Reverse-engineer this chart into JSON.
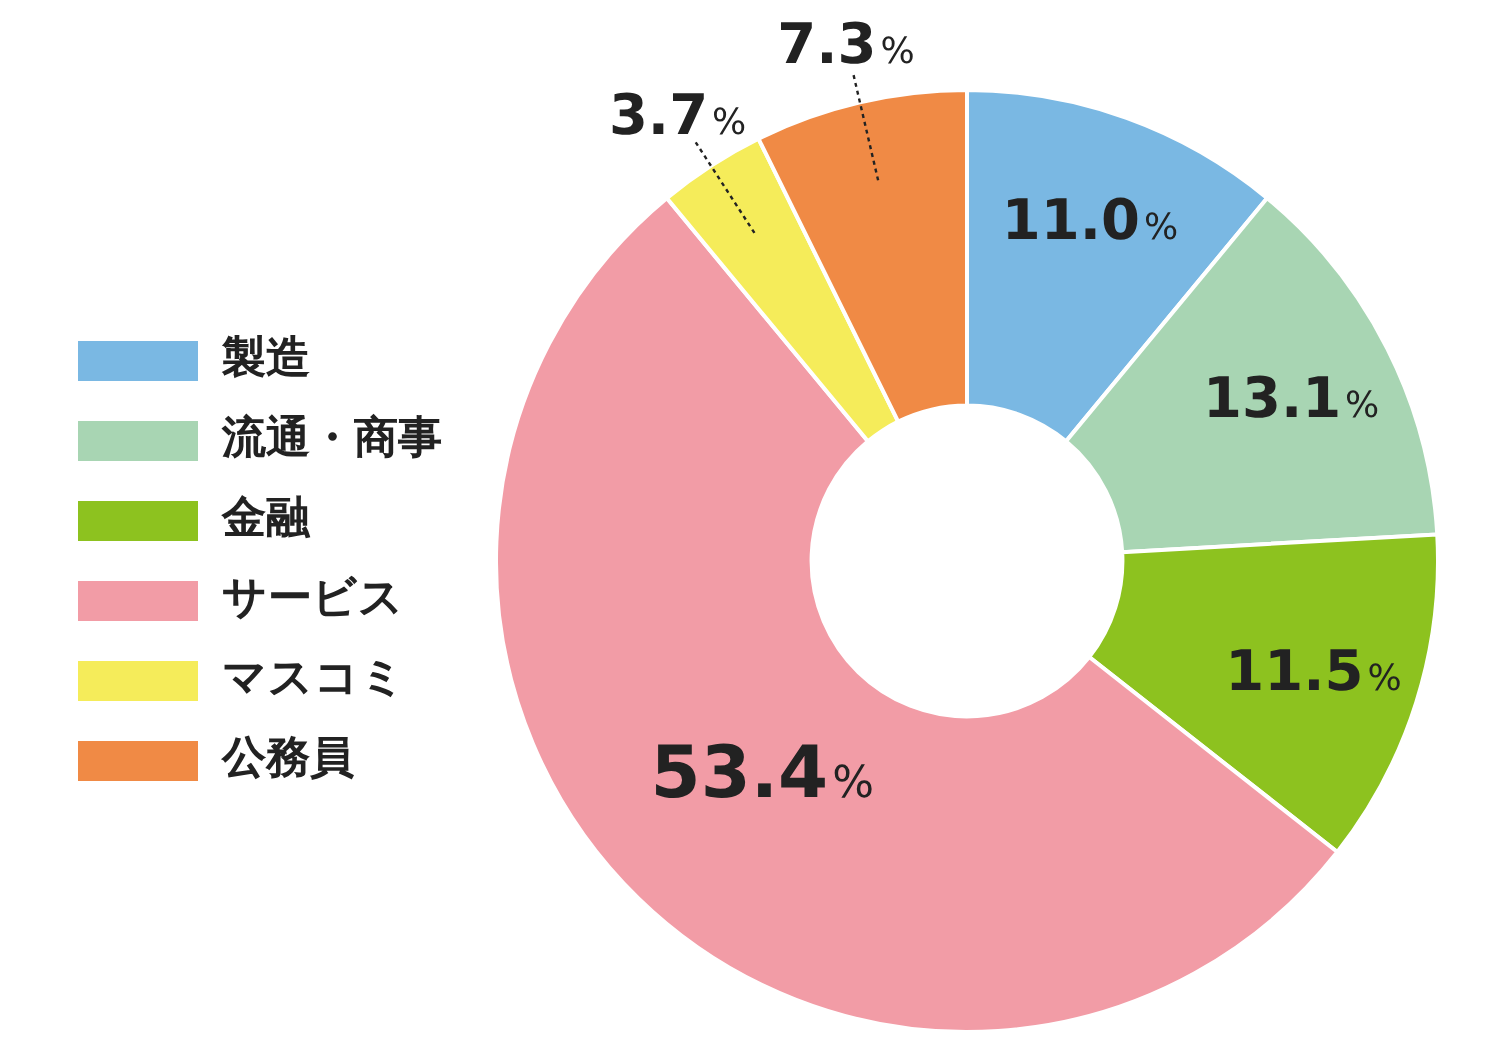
{
  "chart_data": {
    "type": "donut",
    "categories": [
      "製造",
      "流通・商事",
      "金融",
      "サービス",
      "マスコミ",
      "公務員"
    ],
    "values": [
      11.0,
      13.1,
      11.5,
      53.4,
      3.7,
      7.3
    ],
    "colors": [
      "#7ab8e3",
      "#a8d5b3",
      "#8dc21f",
      "#f29ca6",
      "#f5ec5a",
      "#f08a45"
    ],
    "value_labels": [
      "11.0%",
      "13.1%",
      "11.5%",
      "53.4%",
      "3.7%",
      "7.3%"
    ],
    "legend": "left"
  }
}
